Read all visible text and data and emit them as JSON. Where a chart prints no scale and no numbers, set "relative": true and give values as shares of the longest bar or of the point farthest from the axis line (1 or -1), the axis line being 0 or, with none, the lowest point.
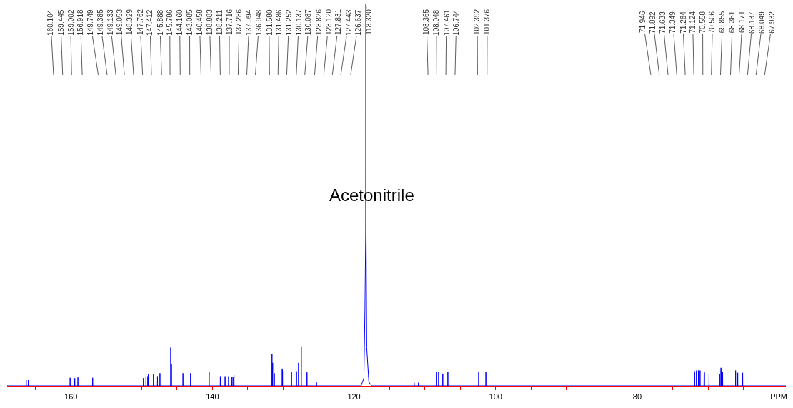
{
  "chart_data": {
    "type": "line",
    "relative": true,
    "tick_labels": "x",
    "xlim": [
      169,
      59
    ],
    "xticks": [
      {
        "value": 165,
        "label": null
      },
      160,
      {
        "value": 155,
        "label": null
      },
      {
        "value": 150,
        "label": null
      },
      {
        "value": 145,
        "label": null
      },
      140,
      {
        "value": 135,
        "label": null
      },
      {
        "value": 130,
        "label": null
      },
      {
        "value": 125,
        "label": null
      },
      120,
      {
        "value": 115,
        "label": null
      },
      {
        "value": 110,
        "label": null
      },
      {
        "value": 105,
        "label": null
      },
      100,
      {
        "value": 95,
        "label": null
      },
      {
        "value": 90,
        "label": null
      },
      {
        "value": 85,
        "label": null
      },
      80,
      {
        "value": 75,
        "label": null
      },
      {
        "value": 70,
        "label": null
      },
      {
        "value": 65,
        "label": null
      },
      {
        "value": 60,
        "label": "PPM"
      }
    ],
    "series": [
      {
        "color": "#0000ff",
        "x": [
          169,
          166.315,
          166.3,
          166.285,
          166.015,
          166,
          165.985,
          160.119,
          160.104,
          160.089,
          159.46,
          159.445,
          159.43,
          159.017,
          159.002,
          158.987,
          156.933,
          156.918,
          156.903,
          149.764,
          149.749,
          149.734,
          149.4,
          149.385,
          149.37,
          149.148,
          149.133,
          149.118,
          149.068,
          149.053,
          149.038,
          148.344,
          148.329,
          148.314,
          147.777,
          147.762,
          147.747,
          147.427,
          147.412,
          147.397,
          145.903,
          145.888,
          145.873,
          145.801,
          145.786,
          145.771,
          144.175,
          144.16,
          144.145,
          143.1,
          143.085,
          143.07,
          140.473,
          140.458,
          140.443,
          138.898,
          138.883,
          138.868,
          138.226,
          138.211,
          138.196,
          137.731,
          137.716,
          137.701,
          137.301,
          137.286,
          137.271,
          137.109,
          137.094,
          137.079,
          136.963,
          136.948,
          136.933,
          131.595,
          131.58,
          131.565,
          131.501,
          131.486,
          131.471,
          131.267,
          131.252,
          131.237,
          130.152,
          130.137,
          130.122,
          130.102,
          130.087,
          130.072,
          128.841,
          128.826,
          128.811,
          128.135,
          128.12,
          128.105,
          127.846,
          127.831,
          127.816,
          127.458,
          127.443,
          127.428,
          126.652,
          126.637,
          126.622,
          125.315,
          125.3,
          125.285,
          119.0,
          118.6,
          118.45,
          118.35,
          118.32,
          118.29,
          118.2,
          117.9,
          117.5,
          111.515,
          111.5,
          111.485,
          110.915,
          110.9,
          110.885,
          108.38,
          108.365,
          108.35,
          108.063,
          108.048,
          108.033,
          107.476,
          107.461,
          107.446,
          106.759,
          106.744,
          106.729,
          102.407,
          102.392,
          102.377,
          101.391,
          101.376,
          101.361,
          71.961,
          71.946,
          71.931,
          71.907,
          71.892,
          71.877,
          71.648,
          71.633,
          71.618,
          71.364,
          71.349,
          71.334,
          71.279,
          71.264,
          71.249,
          71.139,
          71.124,
          71.109,
          70.573,
          70.558,
          70.543,
          70.521,
          70.506,
          70.491,
          69.87,
          69.855,
          69.84,
          68.376,
          68.361,
          68.346,
          68.186,
          68.171,
          68.156,
          68.152,
          68.137,
          68.122,
          68.064,
          68.049,
          68.034,
          67.947,
          67.932,
          67.917,
          66.115,
          66.1,
          66.085,
          65.815,
          65.8,
          65.785,
          65.115,
          65.1,
          65.085,
          59
        ],
        "values": [
          0,
          0,
          0.015,
          0,
          0,
          0.015,
          0,
          0,
          0.021,
          0,
          0,
          0.02,
          0,
          0,
          0.022,
          0,
          0,
          0.021,
          0,
          0,
          0.02,
          0,
          0,
          0.025,
          0,
          0,
          0.025,
          0,
          0,
          0.03,
          0,
          0,
          0.03,
          0,
          0,
          0.025,
          0,
          0,
          0.033,
          0,
          0,
          0.1,
          0,
          0,
          0.056,
          0,
          0,
          0.033,
          0,
          0,
          0.033,
          0,
          0,
          0.036,
          0,
          0,
          0.025,
          0,
          0,
          0.025,
          0,
          0,
          0.025,
          0,
          0,
          0.023,
          0,
          0,
          0.023,
          0,
          0,
          0.028,
          0,
          0,
          0.084,
          0,
          0,
          0.06,
          0,
          0,
          0.033,
          0,
          0,
          0.045,
          0,
          0,
          0.04,
          0,
          0,
          0.036,
          0,
          0,
          0.038,
          0,
          0,
          0.06,
          0,
          0,
          0.103,
          0,
          0,
          0.035,
          0,
          0,
          0.009,
          0,
          0,
          0.02,
          0.2,
          0.4,
          1,
          0.4,
          0.1,
          0.01,
          0,
          0,
          0.008,
          0,
          0,
          0.008,
          0,
          0,
          0.037,
          0,
          0,
          0.037,
          0,
          0,
          0.032,
          0,
          0,
          0.037,
          0,
          0,
          0.037,
          0,
          0,
          0.037,
          0,
          0,
          0.04,
          0,
          0,
          0.035,
          0,
          0,
          0.04,
          0,
          0,
          0.04,
          0,
          0,
          0.038,
          0,
          0,
          0.04,
          0,
          0,
          0.03,
          0,
          0,
          0.035,
          0,
          0,
          0.03,
          0,
          0,
          0.03,
          0,
          0,
          0.047,
          0,
          0,
          0.04,
          0,
          0,
          0.04,
          0,
          0,
          0.035,
          0,
          0,
          0.04,
          0,
          0,
          0.034,
          0,
          0,
          0.034,
          0,
          0
        ]
      }
    ],
    "annotations": [
      {
        "text": "Acetonitrile",
        "x": 118.32,
        "y": 0.5
      },
      {
        "text": "160.104",
        "x": 160.104,
        "y": 0.021
      },
      {
        "text": "159.445",
        "x": 159.445,
        "y": 0.02
      },
      {
        "text": "159.002",
        "x": 159.002,
        "y": 0.022
      },
      {
        "text": "156.918",
        "x": 156.918,
        "y": 0.021
      },
      {
        "text": "149.749",
        "x": 149.749,
        "y": 0.02
      },
      {
        "text": "149.385",
        "x": 149.385,
        "y": 0.025
      },
      {
        "text": "149.133",
        "x": 149.133,
        "y": 0.025
      },
      {
        "text": "149.053",
        "x": 149.053,
        "y": 0.03
      },
      {
        "text": "148.329",
        "x": 148.329,
        "y": 0.03
      },
      {
        "text": "147.762",
        "x": 147.762,
        "y": 0.025
      },
      {
        "text": "147.412",
        "x": 147.412,
        "y": 0.033
      },
      {
        "text": "145.888",
        "x": 145.888,
        "y": 0.1
      },
      {
        "text": "145.786",
        "x": 145.786,
        "y": 0.056
      },
      {
        "text": "144.160",
        "x": 144.16,
        "y": 0.033
      },
      {
        "text": "143.085",
        "x": 143.085,
        "y": 0.033
      },
      {
        "text": "140.458",
        "x": 140.458,
        "y": 0.036
      },
      {
        "text": "138.883",
        "x": 138.883,
        "y": 0.025
      },
      {
        "text": "138.211",
        "x": 138.211,
        "y": 0.025
      },
      {
        "text": "137.716",
        "x": 137.716,
        "y": 0.025
      },
      {
        "text": "137.286",
        "x": 137.286,
        "y": 0.023
      },
      {
        "text": "137.094",
        "x": 137.094,
        "y": 0.023
      },
      {
        "text": "136.948",
        "x": 136.948,
        "y": 0.028
      },
      {
        "text": "131.580",
        "x": 131.58,
        "y": 0.084
      },
      {
        "text": "131.486",
        "x": 131.486,
        "y": 0.06
      },
      {
        "text": "131.252",
        "x": 131.252,
        "y": 0.033
      },
      {
        "text": "130.137",
        "x": 130.137,
        "y": 0.045
      },
      {
        "text": "130.087",
        "x": 130.087,
        "y": 0.04
      },
      {
        "text": "128.826",
        "x": 128.826,
        "y": 0.036
      },
      {
        "text": "128.120",
        "x": 128.12,
        "y": 0.038
      },
      {
        "text": "127.831",
        "x": 127.831,
        "y": 0.06
      },
      {
        "text": "127.443",
        "x": 127.443,
        "y": 0.103
      },
      {
        "text": "126.637",
        "x": 126.637,
        "y": 0.035
      },
      {
        "text": "118.320",
        "x": 118.32,
        "y": 1
      },
      {
        "text": "108.365",
        "x": 108.365,
        "y": 0.037
      },
      {
        "text": "108.048",
        "x": 108.048,
        "y": 0.037
      },
      {
        "text": "107.461",
        "x": 107.461,
        "y": 0.032
      },
      {
        "text": "106.744",
        "x": 106.744,
        "y": 0.037
      },
      {
        "text": "102.392",
        "x": 102.392,
        "y": 0.037
      },
      {
        "text": "101.376",
        "x": 101.376,
        "y": 0.037
      },
      {
        "text": "71.946",
        "x": 71.946,
        "y": 0.04
      },
      {
        "text": "71.892",
        "x": 71.892,
        "y": 0.035
      },
      {
        "text": "71.633",
        "x": 71.633,
        "y": 0.04
      },
      {
        "text": "71.349",
        "x": 71.349,
        "y": 0.04
      },
      {
        "text": "71.264",
        "x": 71.264,
        "y": 0.038
      },
      {
        "text": "71.124",
        "x": 71.124,
        "y": 0.04
      },
      {
        "text": "70.558",
        "x": 70.558,
        "y": 0.03
      },
      {
        "text": "70.506",
        "x": 70.506,
        "y": 0.035
      },
      {
        "text": "69.855",
        "x": 69.855,
        "y": 0.03
      },
      {
        "text": "68.361",
        "x": 68.361,
        "y": 0.03
      },
      {
        "text": "68.171",
        "x": 68.171,
        "y": 0.047
      },
      {
        "text": "68.137",
        "x": 68.137,
        "y": 0.04
      },
      {
        "text": "68.049",
        "x": 68.049,
        "y": 0.04
      },
      {
        "text": "67.932",
        "x": 67.932,
        "y": 0.035
      }
    ]
  }
}
